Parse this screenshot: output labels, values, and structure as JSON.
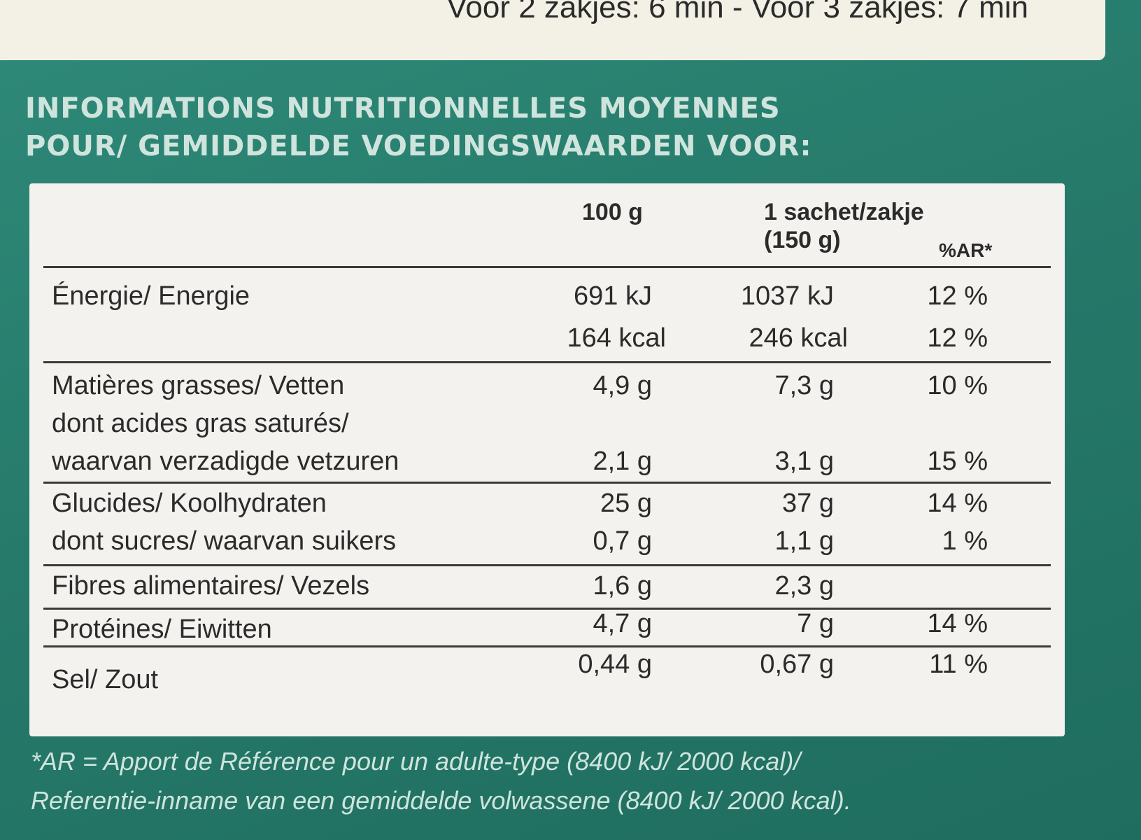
{
  "top_text": "Voor 2 zakjes: 6 min - Voor 3 zakjes: 7 min",
  "header": {
    "line1": "INFORMATIONS NUTRITIONNELLES MOYENNES",
    "line2": "POUR/ GEMIDDELDE VOEDINGSWAARDEN VOOR:"
  },
  "columns": {
    "per100": "100 g",
    "per_serving_1": "1 sachet/zakje",
    "per_serving_2": "(150 g)",
    "ar": "%AR*"
  },
  "rows": [
    {
      "label": "Énergie/ Energie",
      "v100": "691 kJ",
      "vserv": "1037 kJ",
      "ar": "12 %"
    },
    {
      "label": "",
      "v100": "164 kcal",
      "vserv": "246 kcal",
      "ar": "12 %"
    },
    {
      "label": "Matières grasses/ Vetten",
      "v100": "4,9 g",
      "vserv": "7,3 g",
      "ar": "10 %"
    },
    {
      "label": "dont acides gras saturés/",
      "v100": "",
      "vserv": "",
      "ar": ""
    },
    {
      "label": "waarvan verzadigde vetzuren",
      "v100": "2,1 g",
      "vserv": "3,1 g",
      "ar": "15 %"
    },
    {
      "label": "Glucides/ Koolhydraten",
      "v100": "25 g",
      "vserv": "37 g",
      "ar": "14 %"
    },
    {
      "label": "dont sucres/ waarvan suikers",
      "v100": "0,7 g",
      "vserv": "1,1 g",
      "ar": "1 %"
    },
    {
      "label": "Fibres alimentaires/ Vezels",
      "v100": "1,6 g",
      "vserv": "2,3 g",
      "ar": ""
    },
    {
      "label": "Protéines/ Eiwitten",
      "v100": "4,7 g",
      "vserv": "7 g",
      "ar": "14 %"
    },
    {
      "label": "Sel/ Zout",
      "v100": "0,44 g",
      "vserv": "0,67 g",
      "ar": "11 %"
    }
  ],
  "footnote": {
    "line1": "*AR = Apport de Référence pour un adulte-type (8400 kJ/ 2000 kcal)/",
    "line2": "Referentie-inname van een gemiddelde volwassene (8400 kJ/ 2000 kcal)."
  },
  "colors": {
    "background": "#267a6a",
    "panel": "#f4f2ee",
    "header_text": "#cfe4dd"
  }
}
